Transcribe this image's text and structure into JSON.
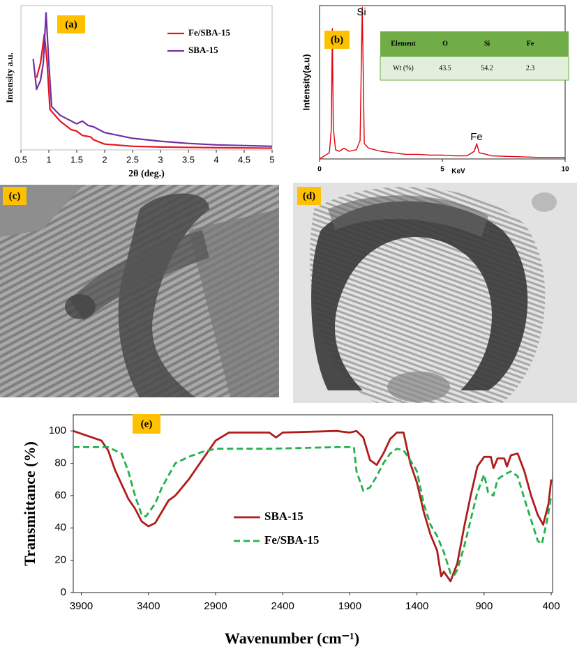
{
  "chart_data": [
    {
      "type": "line",
      "label": "(a)",
      "xlabel": "2θ (deg.)",
      "ylabel": "Intensity a.u.",
      "xlim": [
        0.5,
        5
      ],
      "xticks": [
        0.5,
        1,
        1.5,
        2,
        2.5,
        3,
        3.5,
        4,
        4.5,
        5
      ],
      "ylim": [
        0,
        100
      ],
      "legend": "upper right",
      "series": [
        {
          "name": "Fe/SBA-15",
          "color": "#e8141c",
          "x": [
            0.78,
            0.85,
            0.92,
            0.97,
            1.02,
            1.2,
            1.4,
            1.5,
            1.6,
            1.75,
            1.8,
            2,
            2.5,
            3,
            4,
            5
          ],
          "values": [
            50,
            60,
            80,
            60,
            28,
            20,
            14,
            13,
            10,
            9,
            7,
            4,
            2.5,
            2,
            1.5,
            1.2
          ]
        },
        {
          "name": "SBA-15",
          "color": "#7030a0",
          "x": [
            0.72,
            0.78,
            0.85,
            0.9,
            0.95,
            1,
            1.05,
            1.2,
            1.5,
            1.6,
            1.7,
            1.8,
            2,
            2.5,
            3,
            3.5,
            4,
            4.5,
            5
          ],
          "values": [
            63,
            42,
            48,
            60,
            95,
            60,
            30,
            24,
            18,
            20,
            17,
            16,
            12,
            8,
            6,
            4.5,
            3.5,
            3,
            2.5
          ]
        }
      ]
    },
    {
      "type": "line",
      "label": "(b)",
      "xlabel": "KeV",
      "ylabel": "Intensity(a.u)",
      "xlim": [
        0,
        10
      ],
      "xticks": [
        0,
        5,
        10
      ],
      "ylim": [
        0,
        100
      ],
      "annotations": [
        "Si",
        "Fe"
      ],
      "table": {
        "header": [
          "Element",
          "O",
          "Si",
          "Fe"
        ],
        "rows": [
          [
            "Wt (%)",
            43.5,
            54.2,
            2.3
          ]
        ]
      },
      "series": [
        {
          "color": "#e0000a",
          "x": [
            0,
            0.2,
            0.4,
            0.48,
            0.52,
            0.56,
            0.65,
            0.8,
            1,
            1.2,
            1.5,
            1.65,
            1.74,
            1.82,
            2,
            2.5,
            3,
            3.5,
            4,
            4.5,
            5,
            5.5,
            6,
            6.3,
            6.4,
            6.5,
            6.8,
            7,
            8,
            9,
            10
          ],
          "values": [
            0,
            2,
            4,
            20,
            85,
            20,
            6,
            5,
            7,
            5,
            6,
            12,
            99,
            10,
            7,
            5,
            4,
            3,
            3,
            2.5,
            2.5,
            2,
            2,
            5,
            10,
            4,
            3,
            2,
            1.5,
            1,
            1
          ]
        }
      ]
    },
    {
      "type": "line",
      "label": "(e)",
      "xlabel": "Wavenumber (cm⁻¹)",
      "ylabel": "Transmittance (%)",
      "xlim": [
        3960,
        390
      ],
      "xticks": [
        3900,
        3400,
        2900,
        2400,
        1900,
        1400,
        900,
        400
      ],
      "ylim": [
        0,
        110
      ],
      "yticks": [
        0,
        20,
        40,
        60,
        80,
        100
      ],
      "legend": "center left",
      "series": [
        {
          "name": "SBA-15",
          "color": "#b01c1c",
          "linestyle": "solid",
          "x": [
            3960,
            3750,
            3700,
            3650,
            3550,
            3500,
            3450,
            3400,
            3350,
            3300,
            3250,
            3200,
            3100,
            3000,
            2900,
            2800,
            2500,
            2450,
            2400,
            2000,
            1900,
            1850,
            1800,
            1750,
            1700,
            1650,
            1600,
            1550,
            1500,
            1450,
            1400,
            1350,
            1300,
            1250,
            1220,
            1200,
            1150,
            1100,
            1050,
            1000,
            950,
            900,
            850,
            830,
            800,
            750,
            730,
            700,
            650,
            600,
            550,
            500,
            460,
            420,
            400
          ],
          "values": [
            100,
            94,
            88,
            76,
            58,
            52,
            44,
            41,
            43,
            50,
            57,
            60,
            70,
            82,
            94,
            99,
            99,
            96,
            99,
            100,
            99,
            100,
            96,
            82,
            79,
            86,
            95,
            99,
            99,
            80,
            68,
            50,
            36,
            26,
            10,
            13,
            7,
            18,
            40,
            60,
            78,
            84,
            84,
            77,
            83,
            83,
            78,
            85,
            86,
            75,
            60,
            48,
            42,
            55,
            70
          ]
        },
        {
          "name": "Fe/SBA-15",
          "color": "#22b14c",
          "linestyle": "dashed",
          "x": [
            3960,
            3700,
            3600,
            3550,
            3500,
            3450,
            3420,
            3350,
            3300,
            3200,
            3100,
            3000,
            2900,
            2500,
            2000,
            1870,
            1850,
            1800,
            1750,
            1700,
            1650,
            1600,
            1550,
            1500,
            1450,
            1400,
            1350,
            1300,
            1250,
            1200,
            1150,
            1120,
            1100,
            1050,
            1000,
            950,
            900,
            870,
            830,
            800,
            750,
            700,
            650,
            600,
            550,
            500,
            470,
            430,
            400
          ],
          "values": [
            90,
            90,
            86,
            75,
            60,
            48,
            47,
            55,
            65,
            80,
            84,
            87,
            89,
            89,
            90,
            90,
            75,
            63,
            65,
            72,
            80,
            86,
            89,
            88,
            82,
            75,
            55,
            42,
            35,
            25,
            12,
            11,
            14,
            28,
            45,
            62,
            73,
            62,
            60,
            70,
            73,
            75,
            72,
            58,
            45,
            32,
            30,
            45,
            60
          ]
        }
      ]
    }
  ],
  "images": [
    {
      "label": "(c)"
    },
    {
      "label": "(d)"
    }
  ]
}
